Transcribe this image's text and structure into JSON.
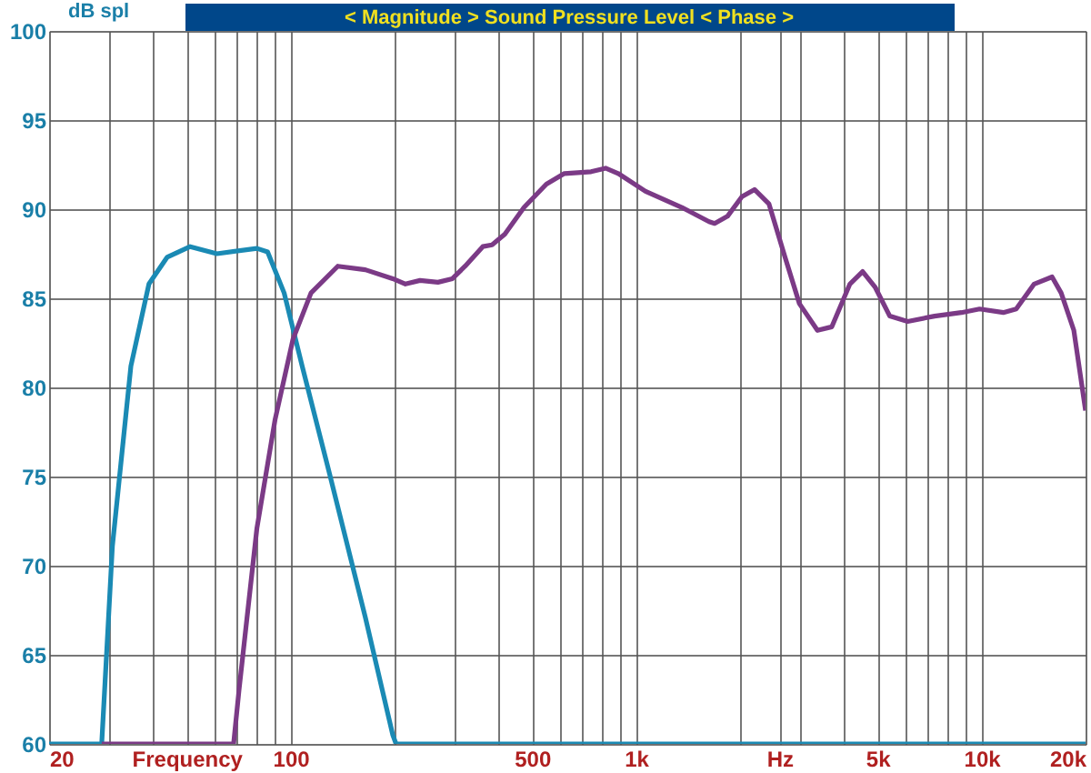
{
  "chart_data": {
    "type": "line",
    "title": "< Magnitude >   Sound Pressure Level   < Phase >",
    "ylabel": "dB spl",
    "log": "x",
    "grid": true,
    "marker": "none",
    "line_style": "solid",
    "xlim": [
      20,
      20000
    ],
    "ylim": [
      60,
      100
    ],
    "xticks": [
      20,
      {
        "value": 30,
        "label": null
      },
      {
        "value": 40,
        "label": null
      },
      {
        "value": 50,
        "label": "Frequency"
      },
      {
        "value": 60,
        "label": null
      },
      {
        "value": 70,
        "label": null
      },
      {
        "value": 80,
        "label": null
      },
      {
        "value": 90,
        "label": null
      },
      100,
      {
        "value": 200,
        "label": null
      },
      {
        "value": 300,
        "label": null
      },
      {
        "value": 400,
        "label": null
      },
      500,
      {
        "value": 600,
        "label": null
      },
      {
        "value": 700,
        "label": null
      },
      {
        "value": 800,
        "label": null
      },
      {
        "value": 900,
        "label": null
      },
      {
        "value": 1000,
        "label": "1k"
      },
      {
        "value": 2000,
        "label": null
      },
      {
        "value": 2600,
        "label": "Hz"
      },
      {
        "value": 3000,
        "label": null
      },
      {
        "value": 4000,
        "label": null
      },
      {
        "value": 5000,
        "label": "5k"
      },
      {
        "value": 6000,
        "label": null
      },
      {
        "value": 7000,
        "label": null
      },
      {
        "value": 8000,
        "label": null
      },
      {
        "value": 9000,
        "label": null
      },
      {
        "value": 10000,
        "label": "10k"
      },
      {
        "value": 20000,
        "label": "20k"
      }
    ],
    "yticks": [
      60,
      65,
      70,
      75,
      80,
      85,
      90,
      95,
      100
    ],
    "series": [
      {
        "color": "#1a8ab4",
        "x": [
          20,
          28.4,
          30.5,
          34.5,
          38.9,
          43.9,
          51.2,
          61.2,
          79.9,
          85.8,
          95.8,
          108,
          129.5,
          164.6,
          197.6,
          202,
          20000
        ],
        "values": [
          60,
          60,
          71.1,
          81.2,
          85.8,
          87.3,
          87.9,
          87.5,
          87.8,
          87.6,
          85.3,
          81.2,
          75.2,
          67.1,
          60.5,
          60,
          60
        ]
      },
      {
        "color": "#7b3a86",
        "x": [
          28.4,
          68.4,
          70.9,
          79.9,
          90.2,
          101.6,
          114.6,
          137,
          164.6,
          197.6,
          215,
          237,
          267,
          294,
          320,
          360,
          383,
          417,
          474,
          550,
          620,
          741,
          816,
          888,
          1065,
          1356,
          1627,
          1688,
          1839,
          2025,
          2202,
          2424,
          2700,
          2970,
          3350,
          3687,
          4159,
          4527,
          4928,
          5425,
          6111,
          7310,
          8750,
          9870,
          11560,
          12600,
          14200,
          16000,
          17000,
          18500,
          20000
        ],
        "values": [
          60,
          60,
          63,
          72.1,
          78.2,
          82.7,
          85.3,
          86.8,
          86.6,
          86.1,
          85.8,
          86,
          85.9,
          86.1,
          86.8,
          87.9,
          88,
          88.6,
          90.1,
          91.4,
          92,
          92.1,
          92.3,
          92,
          91,
          90.1,
          89.3,
          89.2,
          89.6,
          90.7,
          91.1,
          90.3,
          87.3,
          84.7,
          83.2,
          83.4,
          85.8,
          86.5,
          85.6,
          84,
          83.7,
          84,
          84.2,
          84.4,
          84.2,
          84.4,
          85.8,
          86.2,
          85.3,
          83.2,
          78.7
        ]
      }
    ]
  }
}
